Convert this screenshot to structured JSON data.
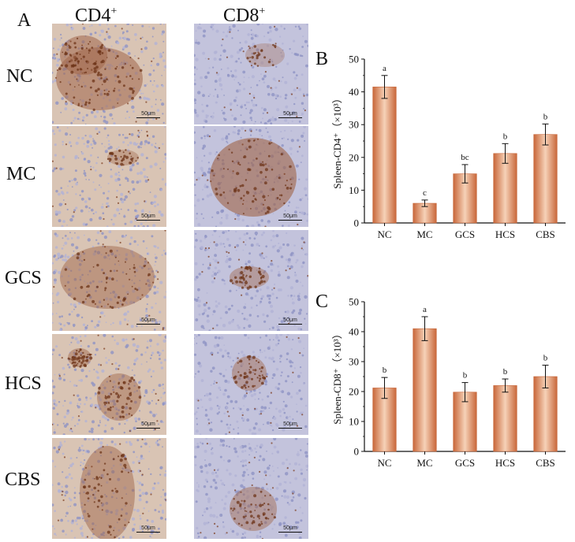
{
  "figure": {
    "panel_a_label": "A",
    "columns": [
      "CD4",
      "CD8"
    ],
    "column_superscript": "+",
    "rows": [
      "NC",
      "MC",
      "GCS",
      "HCS",
      "CBS"
    ],
    "scale_bar_text": "50μm"
  },
  "colors": {
    "bar_dark": "#c8673a",
    "bar_light": "#f6d2b8",
    "tissue_blue": "#9ea4cf",
    "stain_brown": "#8a4a2a"
  },
  "chart_data": [
    {
      "type": "bar",
      "panel": "B",
      "categories": [
        "NC",
        "MC",
        "GCS",
        "HCS",
        "CBS"
      ],
      "values": [
        41.5,
        6.0,
        15.0,
        21.2,
        27.0
      ],
      "errors": [
        3.5,
        1.0,
        2.8,
        3.0,
        3.2
      ],
      "labels": [
        "a",
        "c",
        "bc",
        "b",
        "b"
      ],
      "ylabel": "Spleen-CD4⁺（×10³）",
      "ylim": [
        0,
        50
      ],
      "yticks": [
        0,
        10,
        20,
        30,
        40,
        50
      ],
      "grid": false
    },
    {
      "type": "bar",
      "panel": "C",
      "categories": [
        "NC",
        "MC",
        "GCS",
        "HCS",
        "CBS"
      ],
      "values": [
        21.2,
        41.0,
        19.8,
        22.0,
        25.0
      ],
      "errors": [
        3.5,
        4.0,
        3.2,
        2.2,
        3.8
      ],
      "labels": [
        "b",
        "a",
        "b",
        "b",
        "b"
      ],
      "ylabel": "Spleen-CD8⁺（×10³）",
      "ylim": [
        0,
        50
      ],
      "yticks": [
        0,
        10,
        20,
        30,
        40,
        50
      ],
      "grid": false
    }
  ]
}
